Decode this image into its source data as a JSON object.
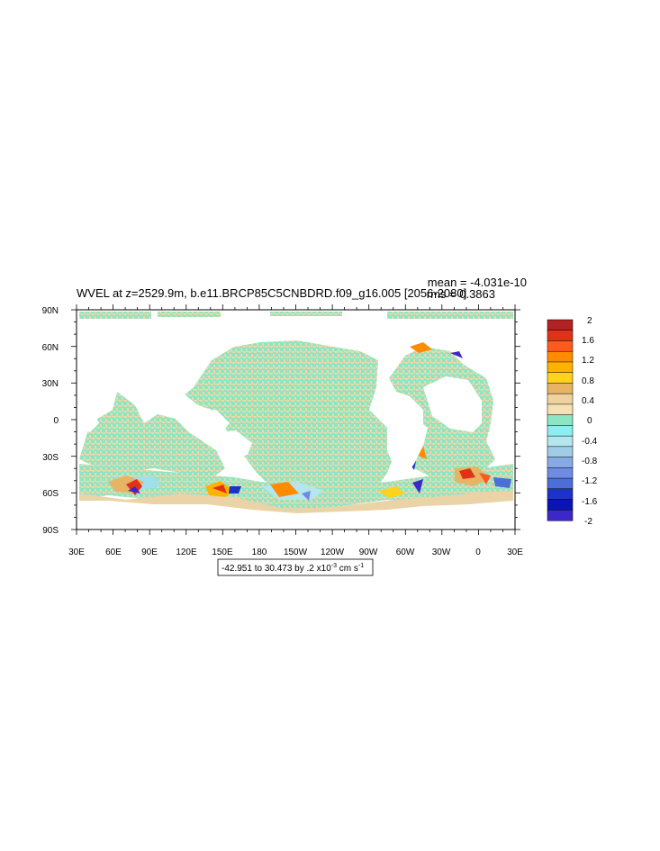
{
  "title": "WVEL at z=2529.9m, b.e11.BRCP85C5CNBDRD.f09_g16.005 [2056-2080]",
  "stats": {
    "mean": "mean = -4.031e-10",
    "rms": "rms = 0.3863"
  },
  "range_label": {
    "prefix": "-42.951 to 30.473 by .2 x10",
    "exponent": "-3",
    "unit": " cm s",
    "unit_exponent": "-1"
  },
  "axes": {
    "lat_labels": [
      "90N",
      "60N",
      "30N",
      "0",
      "30S",
      "60S",
      "90S"
    ],
    "lon_labels": [
      "30E",
      "60E",
      "90E",
      "120E",
      "150E",
      "180",
      "150W",
      "120W",
      "90W",
      "60W",
      "30W",
      "0",
      "30E"
    ]
  },
  "colorbar": {
    "labels": [
      "2",
      "1.6",
      "1.2",
      "0.8",
      "0.4",
      "0",
      "-0.4",
      "-0.8",
      "-1.2",
      "-1.6",
      "-2"
    ],
    "colors": [
      "#b22222",
      "#e03218",
      "#ff5a1e",
      "#ff8c00",
      "#ffb300",
      "#ffd21e",
      "#e6b464",
      "#f0d2a0",
      "#f5e1b4",
      "#8ce6c3",
      "#8ceef0",
      "#b4e6f0",
      "#a0cde6",
      "#87aae6",
      "#6e8ce1",
      "#4b6ed7",
      "#1e32c8",
      "#0a14b4",
      "#3c28c8"
    ]
  },
  "chart_data": {
    "type": "heatmap",
    "title": "WVEL at z=2529.9m, b.e11.BRCP85C5CNBDRD.f09_g16.005 [2056-2080]",
    "units": "x10^-3 cm s^-1",
    "contour_range": {
      "min": -42.951,
      "max": 30.473,
      "interval": 0.2
    },
    "xlim": [
      30,
      390
    ],
    "ylim": [
      -90,
      90
    ],
    "colorbar_levels": [
      -2,
      -1.6,
      -1.2,
      -0.8,
      -0.4,
      0,
      0.4,
      0.8,
      1.2,
      1.6,
      2
    ],
    "mean": -4.031e-10,
    "rms": 0.3863,
    "grid": false
  }
}
